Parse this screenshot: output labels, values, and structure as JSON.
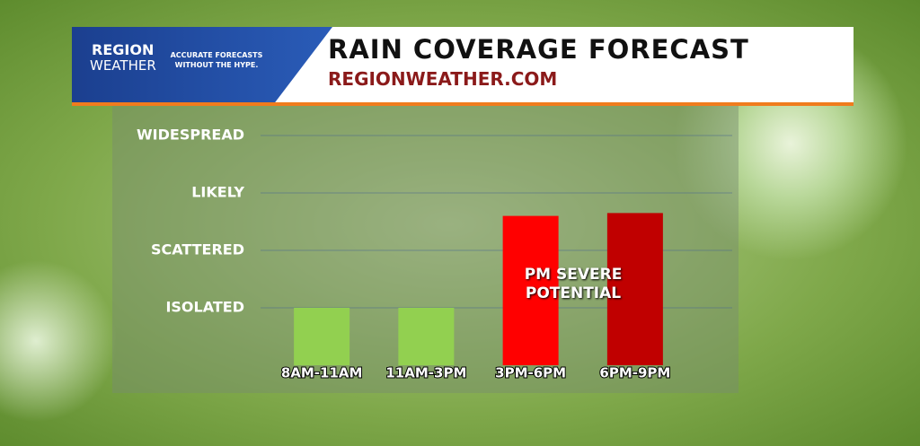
{
  "brand": {
    "name_top": "REGION",
    "name_bottom": "WEATHER",
    "tagline": "ACCURATE FORECASTS WITHOUT THE HYPE."
  },
  "chart_data": {
    "type": "bar",
    "title": "RAIN COVERAGE FORECAST",
    "subtitle": "REGIONWEATHER.COM",
    "categories": [
      "8AM-11AM",
      "11AM-3PM",
      "3PM-6PM",
      "6PM-9PM"
    ],
    "values": [
      1,
      1,
      2.6,
      2.65
    ],
    "colors": [
      "#92d050",
      "#92d050",
      "#ff0000",
      "#c00000"
    ],
    "ylim": [
      0,
      4
    ],
    "yticks": [
      {
        "value": 1,
        "label": "ISOLATED"
      },
      {
        "value": 2,
        "label": "SCATTERED"
      },
      {
        "value": 3,
        "label": "LIKELY"
      },
      {
        "value": 4,
        "label": "WIDESPREAD"
      }
    ],
    "grid": true,
    "annotation": "PM SEVERE POTENTIAL"
  }
}
